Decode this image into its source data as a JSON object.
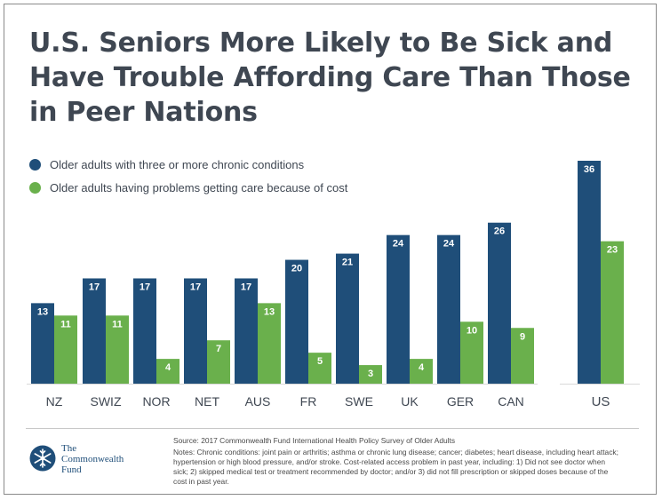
{
  "title_lines": [
    "U.S. Seniors More Likely to Be Sick and",
    "Have Trouble Affording Care Than Those",
    "in Peer Nations"
  ],
  "colors": {
    "series_blue": "#1f4e79",
    "series_green": "#6ab04c",
    "title": "#3f4752",
    "text": "#3f4752"
  },
  "chart_data": {
    "type": "bar",
    "title": "U.S. Seniors More Likely to Be Sick and Have Trouble Affording Care Than Those in Peer Nations",
    "categories": [
      "NZ",
      "SWIZ",
      "NOR",
      "NET",
      "AUS",
      "FR",
      "SWE",
      "UK",
      "GER",
      "CAN",
      "US"
    ],
    "series": [
      {
        "name": "Older adults with three or more chronic conditions",
        "color": "#1f4e79",
        "values": [
          13,
          17,
          17,
          17,
          17,
          20,
          21,
          24,
          24,
          26,
          36
        ]
      },
      {
        "name": "Older adults having problems getting care because of cost",
        "color": "#6ab04c",
        "values": [
          11,
          11,
          4,
          7,
          13,
          5,
          3,
          4,
          10,
          9,
          23
        ]
      }
    ],
    "ylim": [
      0,
      36
    ],
    "grid": false,
    "legend_position": "top-left",
    "data_labels": true
  },
  "footer": {
    "logo_lines": [
      "The",
      "Commonwealth",
      "Fund"
    ],
    "source": "Source: 2017 Commonwealth Fund International Health Policy Survey of Older Adults",
    "notes_lines": [
      "Notes: Chronic conditions: joint pain or arthritis; asthma or chronic lung disease; cancer; diabetes; heart disease, including heart attack;",
      "hypertension or high blood pressure, and/or stroke. Cost-related access problem in past year, including: 1) Did not see doctor when",
      "sick; 2) skipped medical test or treatment recommended by doctor; and/or 3) did not fill prescription or skipped doses because of the",
      "cost in past year."
    ]
  }
}
